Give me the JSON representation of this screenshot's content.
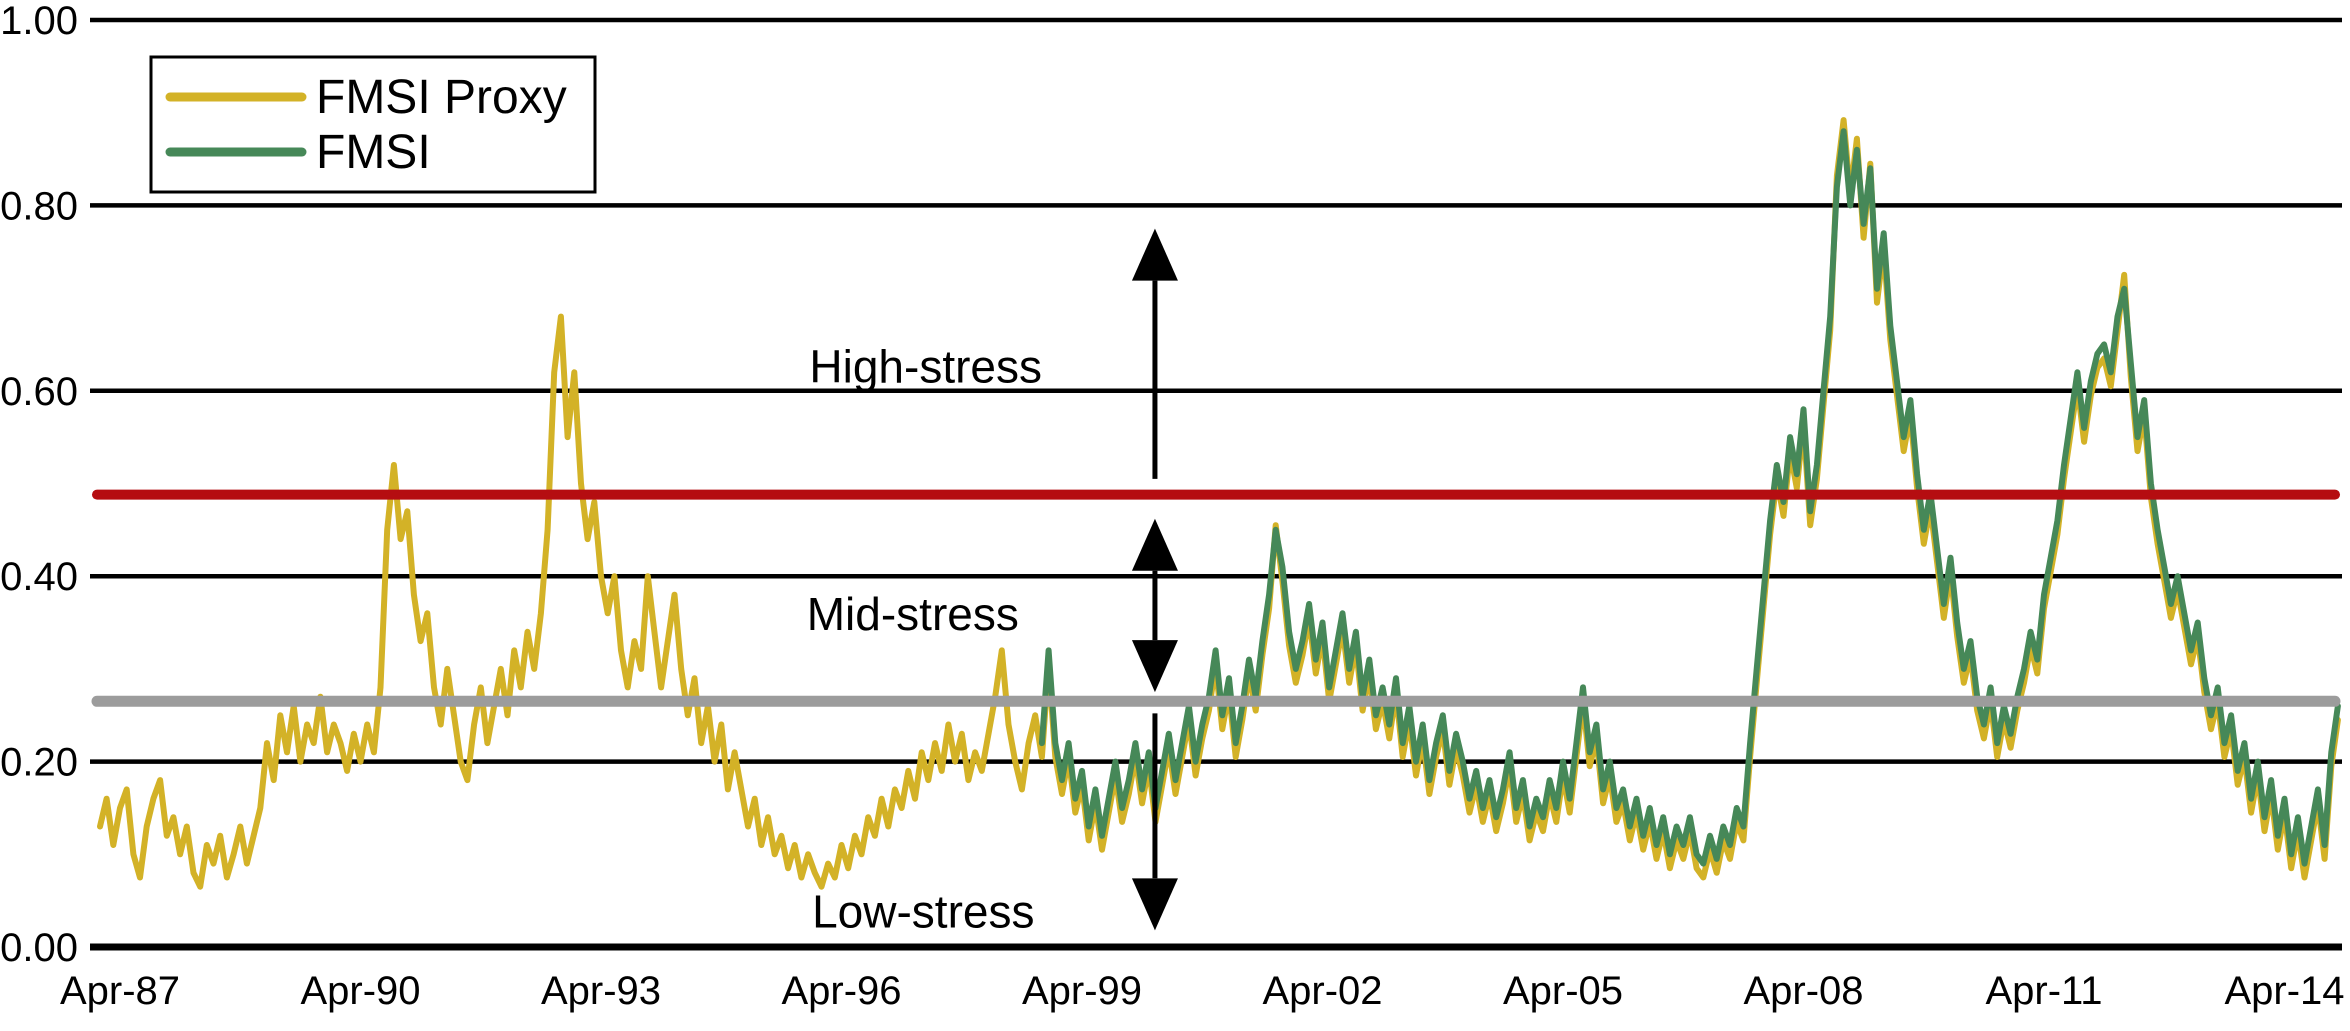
{
  "chart_data": {
    "type": "line",
    "title": "",
    "xlabel": "",
    "ylabel": "",
    "ylim": [
      0.0,
      1.0
    ],
    "xlim": [
      1986.95,
      2015.0
    ],
    "grid": "horizontal-black",
    "background": "#ffffff",
    "y_ticks": [
      "1.00",
      "0.80",
      "0.60",
      "0.40",
      "0.20",
      "0.00"
    ],
    "y_tick_values": [
      1.0,
      0.8,
      0.6,
      0.4,
      0.2,
      0.0
    ],
    "x_ticks": [
      "Apr-87",
      "Apr-90",
      "Apr-93",
      "Apr-96",
      "Apr-99",
      "Apr-02",
      "Apr-05",
      "Apr-08",
      "Apr-11",
      "Apr-14"
    ],
    "x_tick_times": [
      1987.25,
      1990.25,
      1993.25,
      1996.25,
      1999.25,
      2002.25,
      2005.25,
      2008.25,
      2011.25,
      2014.25
    ],
    "legend": {
      "position": "top-left",
      "entries": [
        {
          "label": "FMSI Proxy",
          "color": "#d3b227"
        },
        {
          "label": "FMSI",
          "color": "#468858"
        }
      ]
    },
    "thresholds": [
      {
        "name": "high-stress-threshold",
        "value": 0.488,
        "color": "#b50d11"
      },
      {
        "name": "mid-stress-threshold",
        "value": 0.265,
        "color": "#9c9c9c"
      }
    ],
    "annotations": [
      {
        "label": "High-stress",
        "x_time": 1997.3,
        "y_value": 0.625
      },
      {
        "label": "Mid-stress",
        "x_time": 1997.14,
        "y_value": 0.358
      },
      {
        "label": "Low-stress",
        "x_time": 1997.27,
        "y_value": 0.037
      }
    ],
    "arrows": [
      {
        "name": "high-stress-arrow",
        "x_time": 2000.16,
        "y_start": 0.505,
        "y_end": 0.775,
        "head_start": false,
        "head_end": true
      },
      {
        "name": "mid-stress-arrow",
        "x_time": 2000.16,
        "y_start": 0.462,
        "y_end": 0.275,
        "head_start": true,
        "head_end": true
      },
      {
        "name": "low-stress-arrow",
        "x_time": 2000.16,
        "y_start": 0.252,
        "y_end": 0.018,
        "head_start": false,
        "head_end": true
      }
    ],
    "series": [
      {
        "name": "FMSI Proxy",
        "color": "#d3b227",
        "start": 1987.0,
        "step_months": 1,
        "values": [
          0.13,
          0.16,
          0.11,
          0.15,
          0.17,
          0.1,
          0.075,
          0.13,
          0.16,
          0.18,
          0.12,
          0.14,
          0.1,
          0.13,
          0.08,
          0.065,
          0.11,
          0.09,
          0.12,
          0.075,
          0.1,
          0.13,
          0.09,
          0.12,
          0.15,
          0.22,
          0.18,
          0.25,
          0.21,
          0.26,
          0.2,
          0.24,
          0.22,
          0.27,
          0.21,
          0.24,
          0.22,
          0.19,
          0.23,
          0.2,
          0.24,
          0.21,
          0.28,
          0.45,
          0.52,
          0.44,
          0.47,
          0.38,
          0.33,
          0.36,
          0.28,
          0.24,
          0.3,
          0.25,
          0.2,
          0.18,
          0.24,
          0.28,
          0.22,
          0.26,
          0.3,
          0.25,
          0.32,
          0.28,
          0.34,
          0.3,
          0.36,
          0.45,
          0.62,
          0.68,
          0.55,
          0.62,
          0.5,
          0.44,
          0.48,
          0.4,
          0.36,
          0.4,
          0.32,
          0.28,
          0.33,
          0.3,
          0.4,
          0.34,
          0.28,
          0.33,
          0.38,
          0.3,
          0.25,
          0.29,
          0.22,
          0.26,
          0.2,
          0.24,
          0.17,
          0.21,
          0.17,
          0.13,
          0.16,
          0.11,
          0.14,
          0.1,
          0.12,
          0.085,
          0.11,
          0.075,
          0.1,
          0.08,
          0.065,
          0.09,
          0.075,
          0.11,
          0.085,
          0.12,
          0.1,
          0.14,
          0.12,
          0.16,
          0.13,
          0.17,
          0.15,
          0.19,
          0.16,
          0.21,
          0.18,
          0.22,
          0.19,
          0.24,
          0.2,
          0.23,
          0.18,
          0.21,
          0.19,
          0.23,
          0.27,
          0.32,
          0.24,
          0.2,
          0.17,
          0.22,
          0.25,
          0.205,
          0.305,
          0.205,
          0.165,
          0.205,
          0.145,
          0.175,
          0.115,
          0.155,
          0.105,
          0.145,
          0.185,
          0.135,
          0.165,
          0.205,
          0.155,
          0.195,
          0.135,
          0.175,
          0.215,
          0.165,
          0.205,
          0.245,
          0.185,
          0.225,
          0.255,
          0.305,
          0.235,
          0.275,
          0.205,
          0.245,
          0.295,
          0.255,
          0.315,
          0.365,
          0.455,
          0.395,
          0.325,
          0.285,
          0.315,
          0.355,
          0.295,
          0.335,
          0.265,
          0.305,
          0.345,
          0.285,
          0.325,
          0.255,
          0.295,
          0.235,
          0.265,
          0.225,
          0.275,
          0.205,
          0.245,
          0.185,
          0.225,
          0.165,
          0.205,
          0.235,
          0.175,
          0.215,
          0.185,
          0.145,
          0.175,
          0.135,
          0.165,
          0.125,
          0.155,
          0.195,
          0.135,
          0.165,
          0.115,
          0.145,
          0.125,
          0.165,
          0.135,
          0.185,
          0.145,
          0.205,
          0.265,
          0.195,
          0.225,
          0.155,
          0.185,
          0.135,
          0.155,
          0.115,
          0.145,
          0.105,
          0.135,
          0.095,
          0.125,
          0.085,
          0.115,
          0.095,
          0.125,
          0.085,
          0.075,
          0.105,
          0.08,
          0.115,
          0.095,
          0.135,
          0.115,
          0.205,
          0.285,
          0.365,
          0.445,
          0.505,
          0.465,
          0.535,
          0.495,
          0.565,
          0.455,
          0.505,
          0.585,
          0.665,
          0.832,
          0.892,
          0.812,
          0.872,
          0.765,
          0.845,
          0.695,
          0.755,
          0.655,
          0.595,
          0.535,
          0.575,
          0.495,
          0.435,
          0.475,
          0.415,
          0.355,
          0.405,
          0.335,
          0.285,
          0.315,
          0.255,
          0.225,
          0.265,
          0.205,
          0.245,
          0.215,
          0.255,
          0.285,
          0.325,
          0.295,
          0.365,
          0.405,
          0.445,
          0.505,
          0.555,
          0.605,
          0.545,
          0.595,
          0.625,
          0.635,
          0.605,
          0.665,
          0.725,
          0.615,
          0.535,
          0.575,
          0.485,
          0.435,
          0.395,
          0.355,
          0.385,
          0.345,
          0.305,
          0.335,
          0.275,
          0.235,
          0.265,
          0.205,
          0.235,
          0.175,
          0.205,
          0.145,
          0.185,
          0.125,
          0.165,
          0.105,
          0.145,
          0.085,
          0.125,
          0.075,
          0.115,
          0.155,
          0.095,
          0.195,
          0.245
        ]
      },
      {
        "name": "FMSI",
        "color": "#468858",
        "start": 1998.75,
        "step_months": 1,
        "values": [
          0.22,
          0.32,
          0.22,
          0.18,
          0.22,
          0.16,
          0.19,
          0.13,
          0.17,
          0.12,
          0.16,
          0.2,
          0.15,
          0.18,
          0.22,
          0.17,
          0.21,
          0.15,
          0.19,
          0.23,
          0.18,
          0.22,
          0.26,
          0.2,
          0.24,
          0.27,
          0.32,
          0.25,
          0.29,
          0.22,
          0.26,
          0.31,
          0.27,
          0.33,
          0.38,
          0.45,
          0.41,
          0.34,
          0.3,
          0.33,
          0.37,
          0.31,
          0.35,
          0.28,
          0.32,
          0.36,
          0.3,
          0.34,
          0.27,
          0.31,
          0.25,
          0.28,
          0.24,
          0.29,
          0.22,
          0.26,
          0.2,
          0.24,
          0.18,
          0.22,
          0.25,
          0.19,
          0.23,
          0.2,
          0.16,
          0.19,
          0.15,
          0.18,
          0.14,
          0.17,
          0.21,
          0.15,
          0.18,
          0.13,
          0.16,
          0.14,
          0.18,
          0.15,
          0.2,
          0.16,
          0.22,
          0.28,
          0.21,
          0.24,
          0.17,
          0.2,
          0.15,
          0.17,
          0.13,
          0.16,
          0.12,
          0.15,
          0.11,
          0.14,
          0.1,
          0.13,
          0.11,
          0.14,
          0.1,
          0.09,
          0.12,
          0.095,
          0.13,
          0.11,
          0.15,
          0.13,
          0.22,
          0.3,
          0.38,
          0.46,
          0.52,
          0.48,
          0.55,
          0.51,
          0.58,
          0.47,
          0.52,
          0.6,
          0.68,
          0.82,
          0.88,
          0.8,
          0.86,
          0.78,
          0.84,
          0.71,
          0.77,
          0.67,
          0.61,
          0.55,
          0.59,
          0.51,
          0.45,
          0.49,
          0.43,
          0.37,
          0.42,
          0.35,
          0.3,
          0.33,
          0.27,
          0.24,
          0.28,
          0.22,
          0.26,
          0.23,
          0.27,
          0.3,
          0.34,
          0.31,
          0.38,
          0.42,
          0.46,
          0.52,
          0.57,
          0.62,
          0.56,
          0.61,
          0.64,
          0.65,
          0.62,
          0.68,
          0.71,
          0.63,
          0.55,
          0.59,
          0.5,
          0.45,
          0.41,
          0.37,
          0.4,
          0.36,
          0.32,
          0.35,
          0.29,
          0.25,
          0.28,
          0.22,
          0.25,
          0.19,
          0.22,
          0.16,
          0.2,
          0.14,
          0.18,
          0.12,
          0.16,
          0.1,
          0.14,
          0.09,
          0.13,
          0.17,
          0.11,
          0.21,
          0.26
        ]
      }
    ]
  }
}
